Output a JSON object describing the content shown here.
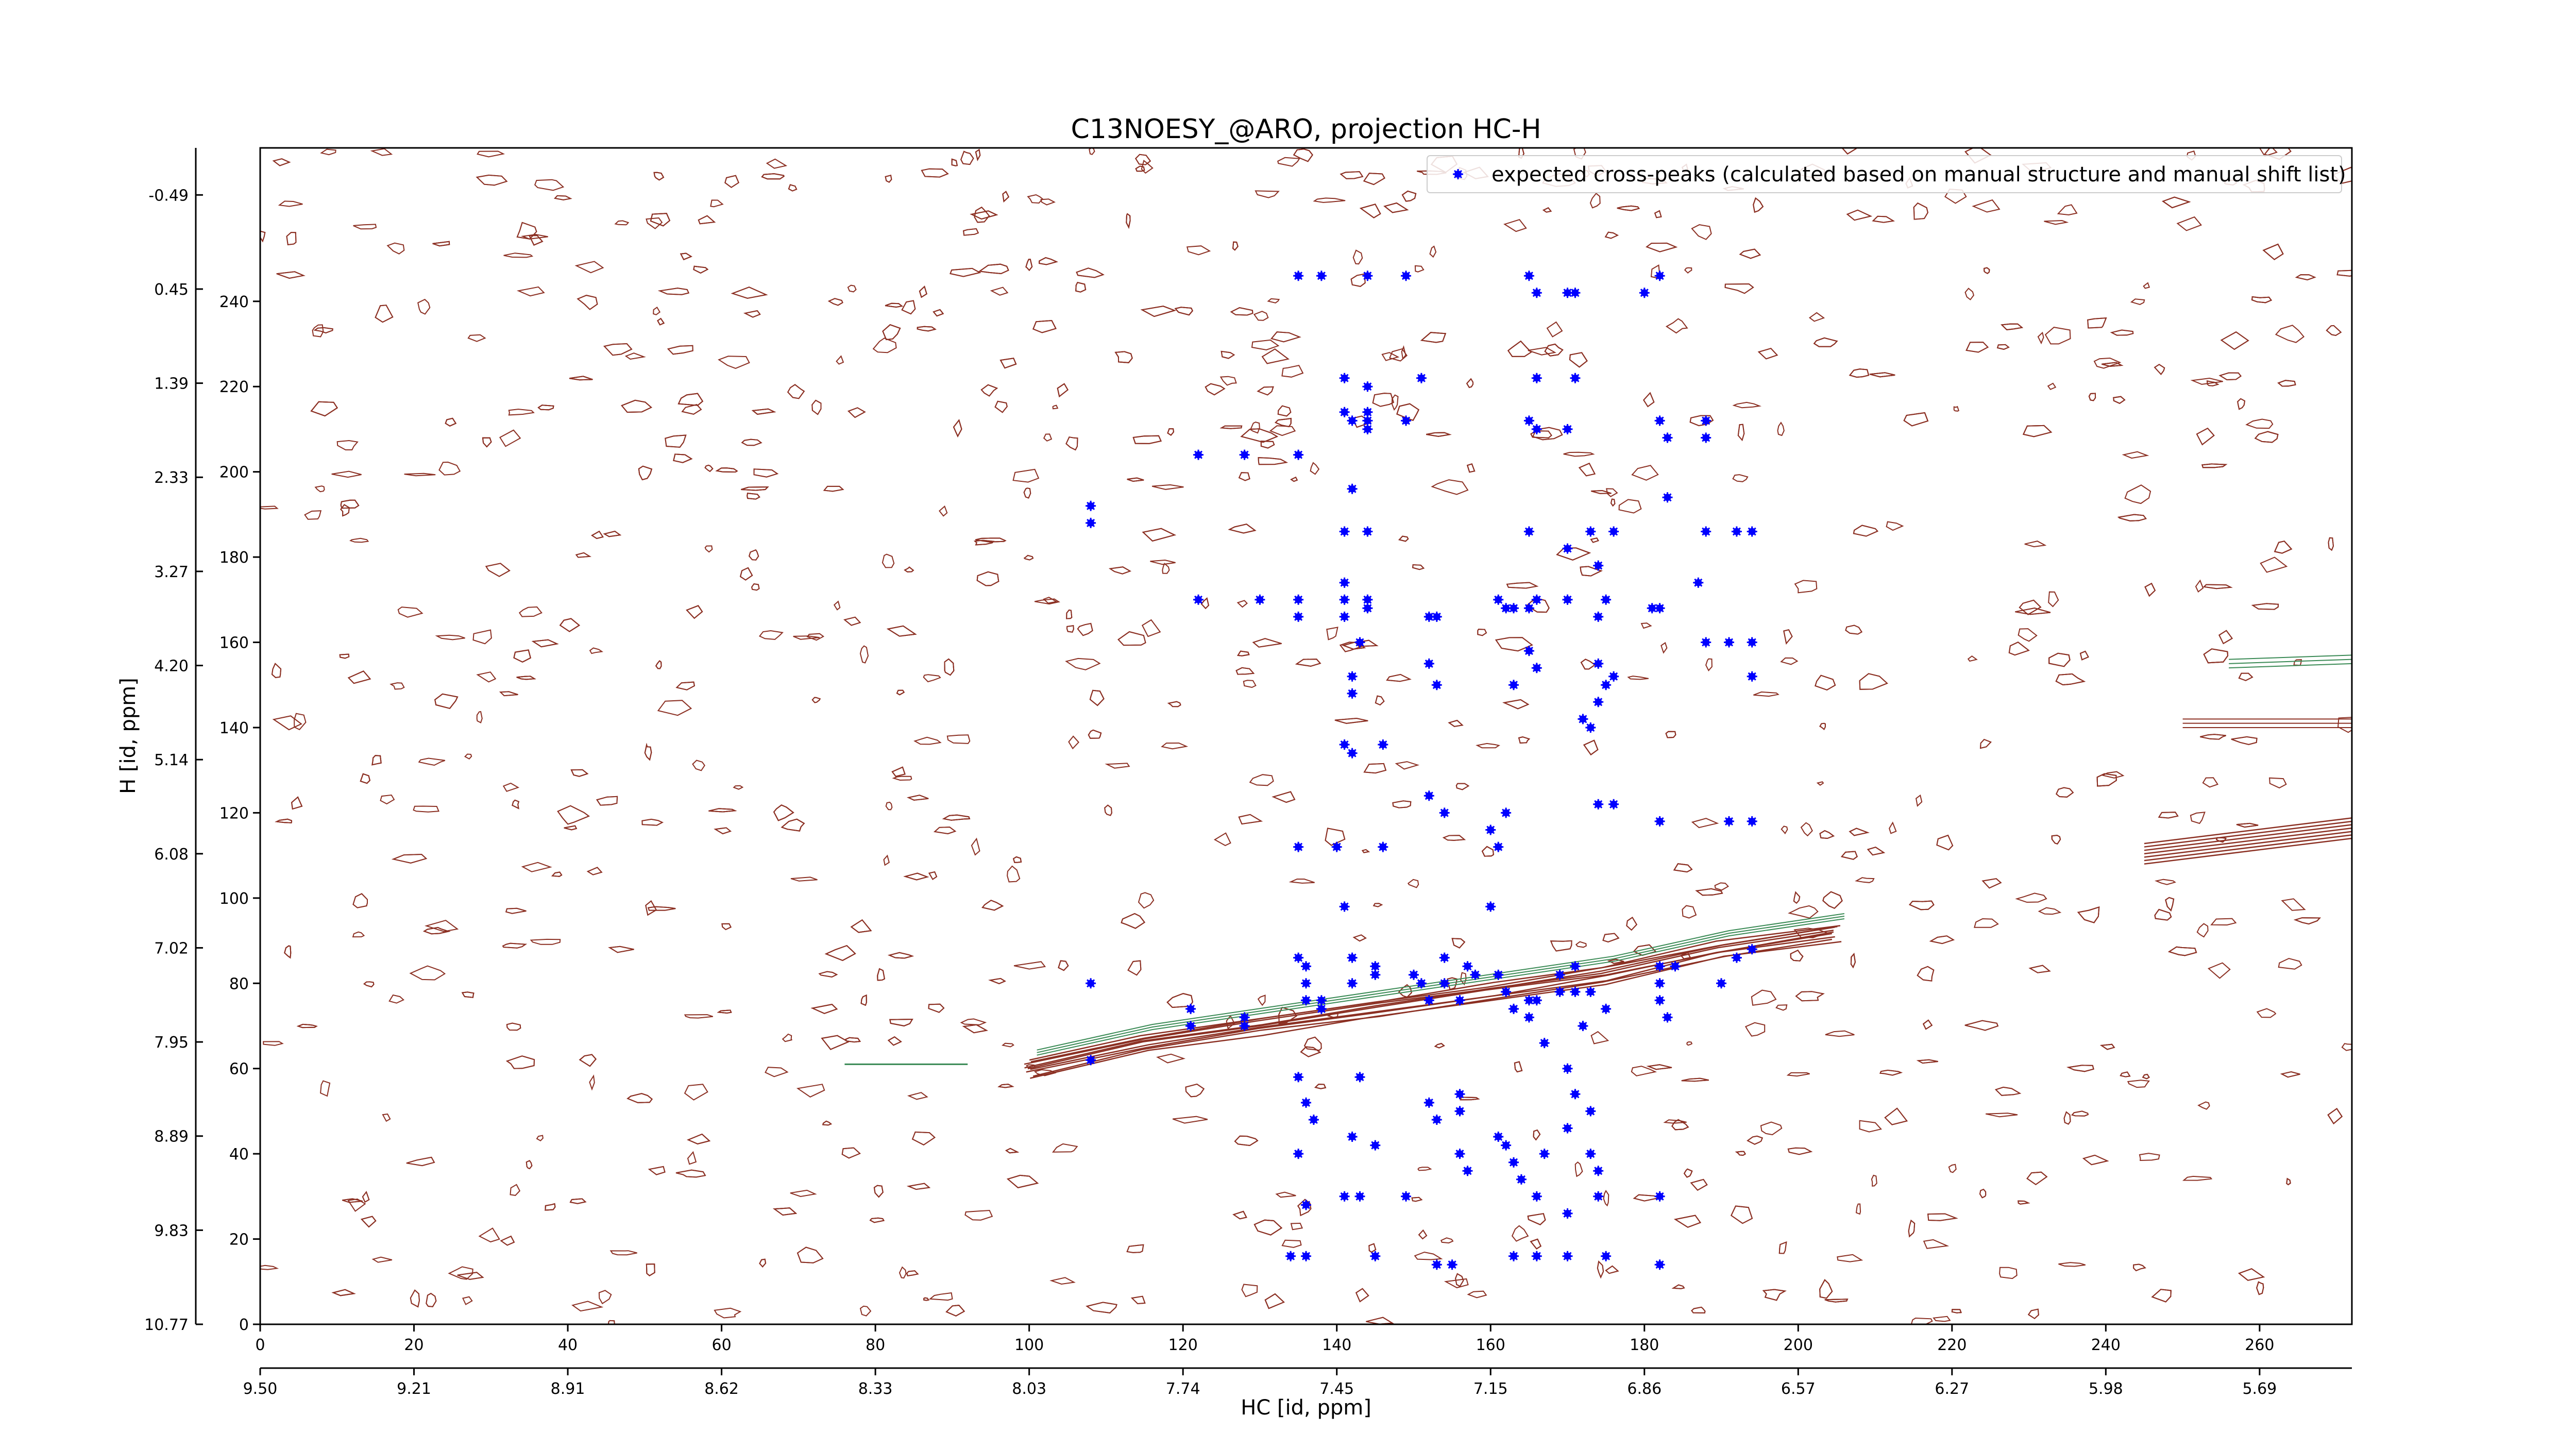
{
  "chart_data": {
    "type": "scatter",
    "title": "C13NOESY_@ARO, projection HC-H",
    "xlabel": "HC [id, ppm]",
    "ylabel": "H [id, ppm]",
    "xlim": [
      0,
      272
    ],
    "ylim": [
      0,
      276
    ],
    "x_ticks": [
      0,
      20,
      40,
      60,
      80,
      100,
      120,
      140,
      160,
      180,
      200,
      220,
      240,
      260
    ],
    "y_ticks": [
      0,
      20,
      40,
      60,
      80,
      100,
      120,
      140,
      160,
      180,
      200,
      220,
      240
    ],
    "x_ppm_labels": [
      "9.50",
      "9.21",
      "8.91",
      "8.62",
      "8.33",
      "8.03",
      "7.74",
      "7.45",
      "7.15",
      "6.86",
      "6.57",
      "6.27",
      "5.98",
      "5.69"
    ],
    "y_ppm_labels": [
      "10.77",
      "9.83",
      "8.89",
      "7.95",
      "7.02",
      "6.08",
      "5.14",
      "4.20",
      "3.27",
      "2.33",
      "1.39",
      "0.45",
      "-0.49"
    ],
    "legend": {
      "position": "top-right",
      "label": "expected cross-peaks (calculated based on manual structure and manual shift list)"
    },
    "colors": {
      "peaks": "#0000ff",
      "contour_pos": "#8b2f22",
      "contour_neg": "#3a8a55",
      "frame": "#000000"
    },
    "series": [
      {
        "name": "expected cross-peaks (calculated based on manual structure and manual shift list)",
        "points": [
          [
            135,
            246
          ],
          [
            138,
            246
          ],
          [
            144,
            246
          ],
          [
            149,
            246
          ],
          [
            165,
            246
          ],
          [
            182,
            246
          ],
          [
            166,
            242
          ],
          [
            170,
            242
          ],
          [
            171,
            242
          ],
          [
            180,
            242
          ],
          [
            141,
            222
          ],
          [
            144,
            220
          ],
          [
            151,
            222
          ],
          [
            166,
            222
          ],
          [
            171,
            222
          ],
          [
            141,
            214
          ],
          [
            142,
            212
          ],
          [
            144,
            214
          ],
          [
            144,
            212
          ],
          [
            144,
            210
          ],
          [
            149,
            212
          ],
          [
            165,
            212
          ],
          [
            166,
            210
          ],
          [
            170,
            210
          ],
          [
            182,
            212
          ],
          [
            183,
            208
          ],
          [
            188,
            212
          ],
          [
            188,
            208
          ],
          [
            122,
            204
          ],
          [
            128,
            204
          ],
          [
            135,
            204
          ],
          [
            183,
            194
          ],
          [
            188,
            186
          ],
          [
            192,
            186
          ],
          [
            194,
            186
          ],
          [
            108,
            192
          ],
          [
            108,
            188
          ],
          [
            142,
            196
          ],
          [
            141,
            186
          ],
          [
            144,
            186
          ],
          [
            165,
            186
          ],
          [
            170,
            182
          ],
          [
            173,
            186
          ],
          [
            176,
            186
          ],
          [
            174,
            178
          ],
          [
            122,
            170
          ],
          [
            130,
            170
          ],
          [
            135,
            170
          ],
          [
            141,
            174
          ],
          [
            141,
            170
          ],
          [
            144,
            170
          ],
          [
            144,
            168
          ],
          [
            163,
            168
          ],
          [
            175,
            170
          ],
          [
            181,
            168
          ],
          [
            182,
            168
          ],
          [
            187,
            174
          ],
          [
            188,
            160
          ],
          [
            191,
            160
          ],
          [
            194,
            160
          ],
          [
            194,
            152
          ],
          [
            135,
            166
          ],
          [
            141,
            166
          ],
          [
            152,
            166
          ],
          [
            153,
            166
          ],
          [
            161,
            170
          ],
          [
            162,
            168
          ],
          [
            165,
            168
          ],
          [
            166,
            170
          ],
          [
            170,
            170
          ],
          [
            174,
            166
          ],
          [
            143,
            160
          ],
          [
            142,
            152
          ],
          [
            142,
            148
          ],
          [
            152,
            155
          ],
          [
            153,
            150
          ],
          [
            163,
            150
          ],
          [
            165,
            158
          ],
          [
            166,
            154
          ],
          [
            174,
            155
          ],
          [
            175,
            150
          ],
          [
            174,
            146
          ],
          [
            176,
            152
          ],
          [
            141,
            136
          ],
          [
            142,
            134
          ],
          [
            146,
            136
          ],
          [
            172,
            142
          ],
          [
            173,
            140
          ],
          [
            152,
            124
          ],
          [
            154,
            120
          ],
          [
            162,
            120
          ],
          [
            174,
            122
          ],
          [
            176,
            122
          ],
          [
            182,
            118
          ],
          [
            191,
            118
          ],
          [
            194,
            118
          ],
          [
            135,
            112
          ],
          [
            140,
            112
          ],
          [
            160,
            116
          ],
          [
            161,
            112
          ],
          [
            146,
            112
          ],
          [
            141,
            98
          ],
          [
            160,
            98
          ],
          [
            108,
            80
          ],
          [
            121,
            74
          ],
          [
            121,
            70
          ],
          [
            128,
            72
          ],
          [
            128,
            70
          ],
          [
            135,
            86
          ],
          [
            136,
            84
          ],
          [
            136,
            80
          ],
          [
            136,
            76
          ],
          [
            138,
            76
          ],
          [
            138,
            74
          ],
          [
            142,
            86
          ],
          [
            142,
            80
          ],
          [
            145,
            84
          ],
          [
            145,
            82
          ],
          [
            150,
            82
          ],
          [
            151,
            80
          ],
          [
            152,
            76
          ],
          [
            154,
            86
          ],
          [
            154,
            80
          ],
          [
            156,
            76
          ],
          [
            157,
            84
          ],
          [
            158,
            82
          ],
          [
            161,
            82
          ],
          [
            162,
            78
          ],
          [
            163,
            74
          ],
          [
            165,
            76
          ],
          [
            165,
            72
          ],
          [
            166,
            76
          ],
          [
            169,
            82
          ],
          [
            169,
            78
          ],
          [
            171,
            84
          ],
          [
            171,
            78
          ],
          [
            173,
            78
          ],
          [
            172,
            70
          ],
          [
            175,
            74
          ],
          [
            182,
            84
          ],
          [
            182,
            80
          ],
          [
            182,
            76
          ],
          [
            183,
            72
          ],
          [
            184,
            84
          ],
          [
            190,
            80
          ],
          [
            192,
            86
          ],
          [
            194,
            88
          ],
          [
            108,
            62
          ],
          [
            135,
            58
          ],
          [
            136,
            52
          ],
          [
            137,
            48
          ],
          [
            143,
            58
          ],
          [
            152,
            52
          ],
          [
            153,
            48
          ],
          [
            156,
            54
          ],
          [
            156,
            50
          ],
          [
            161,
            44
          ],
          [
            162,
            42
          ],
          [
            167,
            66
          ],
          [
            170,
            60
          ],
          [
            171,
            54
          ],
          [
            173,
            50
          ],
          [
            135,
            40
          ],
          [
            142,
            44
          ],
          [
            145,
            42
          ],
          [
            156,
            40
          ],
          [
            157,
            36
          ],
          [
            163,
            38
          ],
          [
            164,
            34
          ],
          [
            167,
            40
          ],
          [
            170,
            46
          ],
          [
            173,
            40
          ],
          [
            174,
            36
          ],
          [
            136,
            28
          ],
          [
            141,
            30
          ],
          [
            143,
            30
          ],
          [
            149,
            30
          ],
          [
            166,
            30
          ],
          [
            170,
            26
          ],
          [
            174,
            30
          ],
          [
            182,
            30
          ],
          [
            134,
            16
          ],
          [
            136,
            16
          ],
          [
            145,
            16
          ],
          [
            153,
            14
          ],
          [
            155,
            14
          ],
          [
            163,
            16
          ],
          [
            166,
            16
          ],
          [
            170,
            16
          ],
          [
            175,
            16
          ],
          [
            182,
            14
          ]
        ]
      }
    ]
  }
}
